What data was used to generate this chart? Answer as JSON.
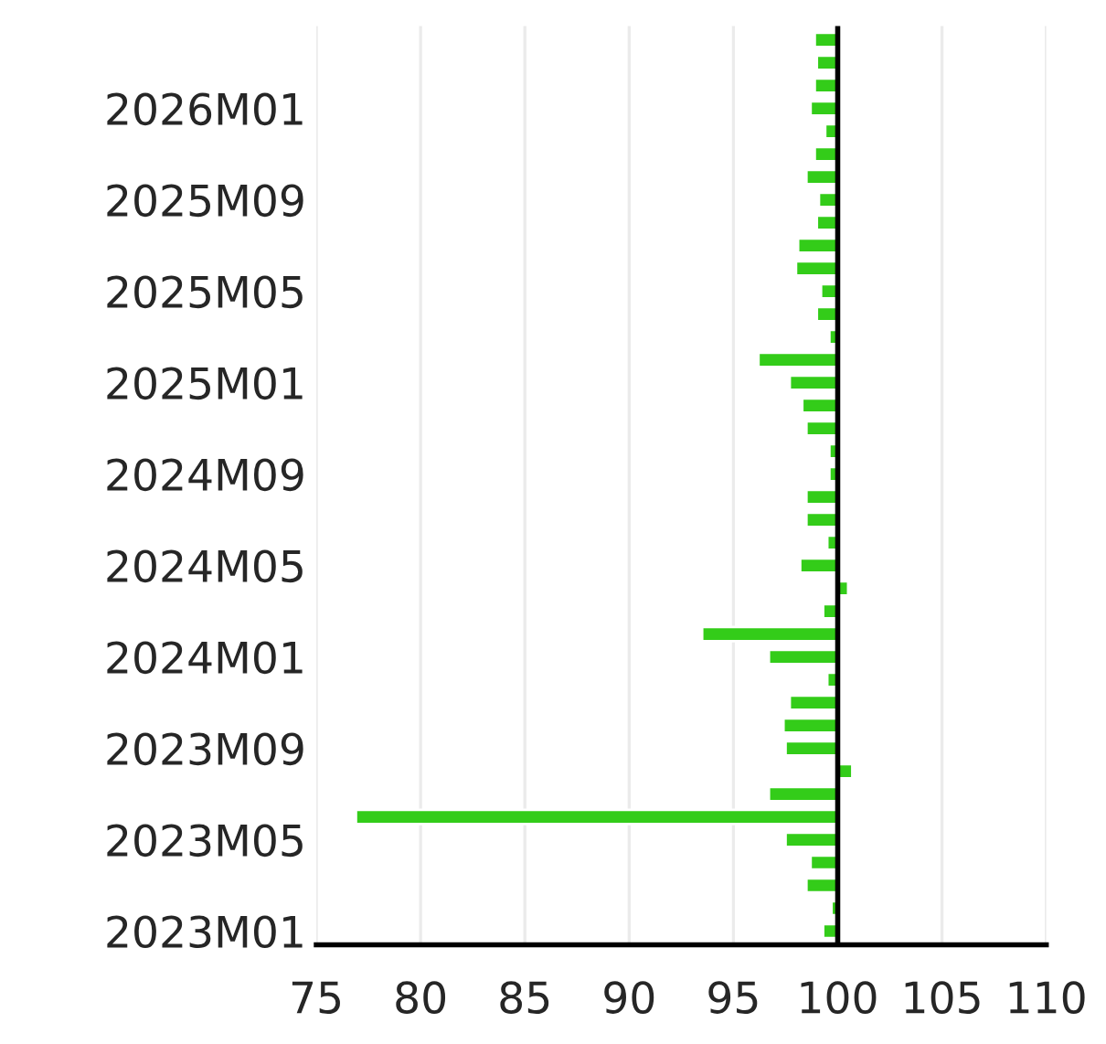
{
  "chart_data": {
    "type": "bar",
    "orientation": "horizontal",
    "categories": [
      null,
      null,
      null,
      "2026M01",
      null,
      null,
      null,
      "2025M09",
      null,
      null,
      null,
      "2025M05",
      null,
      null,
      null,
      "2025M01",
      null,
      null,
      null,
      "2024M09",
      null,
      null,
      null,
      "2024M05",
      null,
      null,
      null,
      "2024M01",
      null,
      null,
      null,
      "2023M09",
      null,
      null,
      null,
      "2023M05",
      null,
      null,
      null,
      "2023M01"
    ],
    "base": [
      100,
      100,
      100,
      100,
      100,
      100,
      100,
      100,
      100,
      100,
      100,
      100,
      100,
      100,
      100,
      100,
      100,
      100,
      100,
      100,
      100,
      100,
      100,
      100,
      100,
      100,
      100,
      100,
      100,
      100,
      100,
      100,
      100,
      100,
      100,
      100,
      100,
      100,
      100,
      100
    ],
    "values": [
      -1.1,
      -1.0,
      -1.1,
      -1.3,
      -0.6,
      -1.1,
      -1.5,
      -0.9,
      -1.0,
      -1.9,
      -2.0,
      -0.8,
      -1.0,
      -0.4,
      -3.8,
      -2.3,
      -1.7,
      -1.5,
      -0.4,
      -0.4,
      -1.5,
      -1.5,
      -0.5,
      -1.8,
      0.5,
      -0.7,
      -6.5,
      -3.3,
      -0.5,
      -2.3,
      -2.6,
      -2.5,
      0.7,
      -3.3,
      -23.1,
      -2.5,
      -1.3,
      -1.5,
      -0.3,
      -0.7
    ],
    "color": "#33cc19",
    "xlim": [
      75,
      110
    ],
    "xticks": [
      75,
      80,
      85,
      90,
      95,
      100,
      105,
      110
    ],
    "grid": "x",
    "ref_lines": [
      {
        "axis": "x",
        "value": 100,
        "color": "#000000"
      }
    ]
  }
}
